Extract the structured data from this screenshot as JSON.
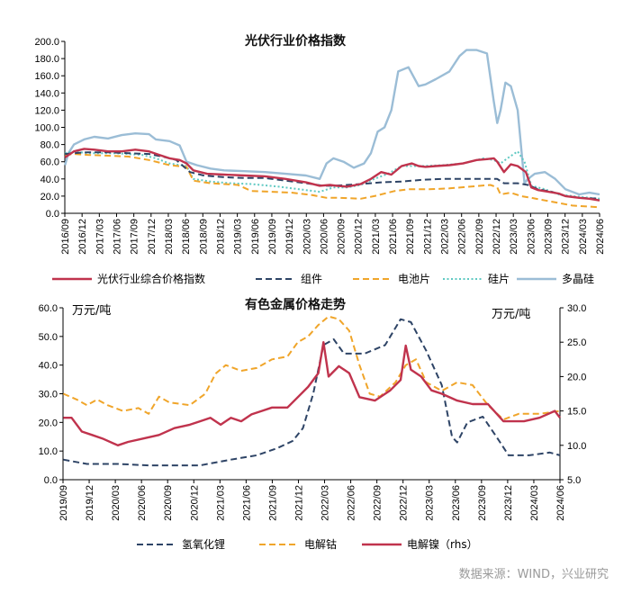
{
  "source": "数据来源：WIND，兴业研究",
  "colors": {
    "red": "#c0334d",
    "navy": "#2e4466",
    "orange": "#f0a52a",
    "teal": "#5fc9c2",
    "lightblue": "#9bbdd6"
  },
  "chart_data": [
    {
      "type": "line",
      "title": "光伏行业价格指数",
      "ylim": [
        0,
        200
      ],
      "yticks": [
        "0.0",
        "20.0",
        "40.0",
        "60.0",
        "80.0",
        "100.0",
        "120.0",
        "140.0",
        "160.0",
        "180.0",
        "200.0"
      ],
      "x_range": [
        2016.667,
        2024.5
      ],
      "xticks": [
        "2016/09",
        "2016/12",
        "2017/03",
        "2017/06",
        "2017/09",
        "2017/12",
        "2018/03",
        "2018/06",
        "2018/09",
        "2018/12",
        "2019/03",
        "2019/06",
        "2019/09",
        "2019/12",
        "2020/03",
        "2020/06",
        "2020/09",
        "2020/12",
        "2021/03",
        "2021/06",
        "2021/09",
        "2021/12",
        "2022/03",
        "2022/06",
        "2022/09",
        "2022/12",
        "2023/03",
        "2023/06",
        "2023/09",
        "2023/12",
        "2024/03",
        "2024/06"
      ],
      "series": [
        {
          "name": "光伏行业综合价格指数",
          "color": "red",
          "style": "solid",
          "width": 2.4,
          "x": [
            2016.67,
            2016.8,
            2016.95,
            2017.1,
            2017.3,
            2017.5,
            2017.7,
            2017.9,
            2018.05,
            2018.2,
            2018.35,
            2018.45,
            2018.55,
            2018.75,
            2019.0,
            2019.3,
            2019.6,
            2019.9,
            2020.2,
            2020.4,
            2020.55,
            2020.65,
            2020.8,
            2021.0,
            2021.15,
            2021.3,
            2021.45,
            2021.6,
            2021.75,
            2021.85,
            2021.95,
            2022.1,
            2022.3,
            2022.5,
            2022.7,
            2022.85,
            2022.95,
            2023.0,
            2023.1,
            2023.2,
            2023.3,
            2023.42,
            2023.5,
            2023.6,
            2023.75,
            2023.9,
            2024.0,
            2024.2,
            2024.35,
            2024.5
          ],
          "y": [
            65,
            72,
            75,
            74,
            72,
            72,
            74,
            72,
            68,
            64,
            62,
            58,
            50,
            46,
            45,
            44,
            43,
            40,
            36,
            32,
            33,
            32,
            31,
            34,
            40,
            48,
            45,
            55,
            58,
            55,
            54,
            55,
            56,
            58,
            62,
            63,
            64,
            60,
            48,
            57,
            55,
            48,
            30,
            27,
            25,
            23,
            20,
            18,
            17,
            15
          ]
        },
        {
          "name": "组件",
          "color": "navy",
          "style": "dash",
          "width": 2.0,
          "x": [
            2016.67,
            2016.8,
            2017.0,
            2017.3,
            2017.6,
            2017.9,
            2018.1,
            2018.3,
            2018.5,
            2018.7,
            2019.0,
            2019.3,
            2019.6,
            2019.9,
            2020.2,
            2020.45,
            2020.6,
            2020.8,
            2021.0,
            2021.3,
            2021.6,
            2021.9,
            2022.2,
            2022.5,
            2022.8,
            2023.0,
            2023.1,
            2023.3,
            2023.45,
            2023.6,
            2023.8,
            2024.0,
            2024.2,
            2024.5
          ],
          "y": [
            69,
            70,
            71,
            71,
            70,
            69,
            66,
            62,
            48,
            44,
            42,
            41,
            41,
            38,
            35,
            32,
            32,
            33,
            34,
            36,
            37,
            39,
            40,
            40,
            40,
            40,
            35,
            35,
            33,
            28,
            25,
            20,
            18,
            17
          ]
        },
        {
          "name": "电池片",
          "color": "orange",
          "style": "dash",
          "width": 2.0,
          "x": [
            2016.67,
            2016.8,
            2017.0,
            2017.3,
            2017.6,
            2017.9,
            2018.2,
            2018.45,
            2018.55,
            2018.8,
            2019.0,
            2019.2,
            2019.4,
            2019.7,
            2020.0,
            2020.3,
            2020.5,
            2020.7,
            2021.0,
            2021.2,
            2021.4,
            2021.5,
            2021.7,
            2022.0,
            2022.3,
            2022.6,
            2022.9,
            2023.0,
            2023.05,
            2023.2,
            2023.35,
            2023.5,
            2023.7,
            2023.9,
            2024.1,
            2024.5
          ],
          "y": [
            68,
            69,
            68,
            67,
            66,
            62,
            56,
            54,
            38,
            35,
            34,
            33,
            26,
            25,
            24,
            21,
            18,
            18,
            17,
            20,
            24,
            26,
            28,
            28,
            29,
            31,
            33,
            30,
            22,
            24,
            20,
            18,
            15,
            12,
            9,
            7
          ]
        },
        {
          "name": "硅片",
          "color": "teal",
          "style": "dot",
          "width": 2.0,
          "x": [
            2016.67,
            2016.8,
            2017.0,
            2017.4,
            2017.8,
            2018.0,
            2018.2,
            2018.45,
            2018.55,
            2018.8,
            2019.1,
            2019.4,
            2019.8,
            2020.1,
            2020.4,
            2020.6,
            2020.8,
            2021.0,
            2021.2,
            2021.4,
            2021.6,
            2021.9,
            2022.2,
            2022.5,
            2022.8,
            2022.95,
            2023.05,
            2023.15,
            2023.3,
            2023.4,
            2023.5,
            2023.7,
            2023.9,
            2024.1,
            2024.5
          ],
          "y": [
            70,
            72,
            70,
            70,
            68,
            64,
            58,
            55,
            40,
            37,
            35,
            34,
            31,
            28,
            25,
            30,
            30,
            33,
            40,
            46,
            55,
            55,
            56,
            58,
            64,
            62,
            58,
            64,
            72,
            60,
            32,
            28,
            22,
            20,
            17
          ]
        },
        {
          "name": "多晶硅",
          "color": "lightblue",
          "style": "solid",
          "width": 2.4,
          "x": [
            2016.67,
            2016.72,
            2016.8,
            2016.95,
            2017.1,
            2017.3,
            2017.5,
            2017.7,
            2017.9,
            2018.0,
            2018.2,
            2018.35,
            2018.45,
            2018.6,
            2018.8,
            2019.0,
            2019.3,
            2019.6,
            2019.9,
            2020.2,
            2020.4,
            2020.5,
            2020.6,
            2020.75,
            2020.9,
            2021.05,
            2021.15,
            2021.25,
            2021.35,
            2021.45,
            2021.55,
            2021.7,
            2021.85,
            2021.95,
            2022.1,
            2022.3,
            2022.45,
            2022.55,
            2022.7,
            2022.85,
            2022.95,
            2023.0,
            2023.05,
            2023.12,
            2023.2,
            2023.3,
            2023.4,
            2023.45,
            2023.55,
            2023.7,
            2023.85,
            2024.0,
            2024.2,
            2024.35,
            2024.5
          ],
          "y": [
            56,
            70,
            80,
            86,
            89,
            87,
            91,
            93,
            92,
            86,
            84,
            79,
            60,
            56,
            52,
            50,
            49,
            48,
            46,
            44,
            40,
            58,
            64,
            60,
            53,
            58,
            70,
            95,
            100,
            120,
            165,
            170,
            148,
            150,
            156,
            165,
            183,
            190,
            190,
            186,
            130,
            105,
            120,
            152,
            148,
            120,
            35,
            40,
            46,
            48,
            40,
            28,
            22,
            24,
            22
          ]
        }
      ],
      "legend": [
        "光伏行业综合价格指数",
        "组件",
        "电池片",
        "硅片",
        "多晶硅"
      ]
    },
    {
      "type": "line",
      "title": "有色金属价格走势",
      "ylabel_left": "万元/吨",
      "ylabel_right": "万元/吨",
      "ylim_left": [
        0,
        60
      ],
      "ylim_right": [
        5,
        30
      ],
      "yticks_left": [
        "0.0",
        "10.0",
        "20.0",
        "30.0",
        "40.0",
        "50.0",
        "60.0"
      ],
      "yticks_right": [
        "5.0",
        "10.0",
        "15.0",
        "20.0",
        "25.0",
        "30.0"
      ],
      "x_range": [
        2019.667,
        2024.5
      ],
      "xticks": [
        "2019/09",
        "2019/12",
        "2020/03",
        "2020/06",
        "2020/09",
        "2020/12",
        "2021/03",
        "2021/06",
        "2021/09",
        "2021/12",
        "2022/03",
        "2022/06",
        "2022/09",
        "2022/12",
        "2023/03",
        "2023/06",
        "2023/09",
        "2023/12",
        "2024/03",
        "2024/06"
      ],
      "series": [
        {
          "name": "氢氧化锂",
          "axis": "left",
          "color": "navy",
          "style": "dash",
          "width": 2.0,
          "x": [
            2019.67,
            2019.9,
            2020.2,
            2020.5,
            2020.8,
            2021.0,
            2021.3,
            2021.55,
            2021.75,
            2021.9,
            2022.0,
            2022.1,
            2022.2,
            2022.3,
            2022.4,
            2022.6,
            2022.8,
            2022.95,
            2023.05,
            2023.2,
            2023.35,
            2023.45,
            2023.5,
            2023.6,
            2023.75,
            2023.9,
            2024.0,
            2024.2,
            2024.4,
            2024.5
          ],
          "y": [
            7,
            5.5,
            5.5,
            5,
            5,
            5,
            7,
            8.5,
            11,
            13.5,
            18,
            30,
            47,
            49,
            44,
            44,
            47,
            56,
            55,
            45,
            33,
            15,
            13,
            20,
            22,
            14,
            8.5,
            8.5,
            9.5,
            8.5
          ]
        },
        {
          "name": "电解钴",
          "axis": "left",
          "color": "orange",
          "style": "dash",
          "width": 2.0,
          "x": [
            2019.67,
            2019.8,
            2019.9,
            2020.0,
            2020.1,
            2020.25,
            2020.4,
            2020.5,
            2020.6,
            2020.7,
            2020.9,
            2021.05,
            2021.15,
            2021.25,
            2021.4,
            2021.55,
            2021.7,
            2021.85,
            2021.95,
            2022.05,
            2022.15,
            2022.25,
            2022.35,
            2022.45,
            2022.55,
            2022.65,
            2022.75,
            2022.9,
            2023.0,
            2023.1,
            2023.2,
            2023.35,
            2023.5,
            2023.65,
            2023.8,
            2023.95,
            2024.1,
            2024.3,
            2024.5
          ],
          "y": [
            30,
            28,
            26,
            28,
            26,
            24,
            25,
            23,
            29,
            27,
            26,
            30,
            37,
            40,
            38,
            39,
            42,
            43,
            48,
            50,
            54,
            57,
            56,
            52,
            40,
            30,
            29,
            34,
            40,
            42,
            34,
            31,
            34,
            33,
            26,
            21,
            23,
            23,
            24
          ]
        },
        {
          "name": "电解镍（rhs）",
          "axis": "right",
          "color": "red",
          "style": "solid",
          "width": 2.4,
          "x": [
            2019.67,
            2019.75,
            2019.85,
            2019.95,
            2020.05,
            2020.2,
            2020.3,
            2020.45,
            2020.6,
            2020.75,
            2020.9,
            2021.0,
            2021.1,
            2021.2,
            2021.3,
            2021.4,
            2021.5,
            2021.6,
            2021.7,
            2021.85,
            2021.95,
            2022.05,
            2022.15,
            2022.2,
            2022.25,
            2022.35,
            2022.45,
            2022.55,
            2022.7,
            2022.85,
            2022.95,
            2023.0,
            2023.05,
            2023.15,
            2023.25,
            2023.35,
            2023.5,
            2023.65,
            2023.8,
            2023.95,
            2024.05,
            2024.15,
            2024.3,
            2024.45,
            2024.5
          ],
          "y": [
            14,
            14,
            12,
            11.5,
            11,
            10,
            10.5,
            11,
            11.5,
            12.5,
            13,
            13.5,
            14,
            13,
            14,
            13.5,
            14.5,
            15,
            15.5,
            15.5,
            17,
            18.5,
            20.5,
            25,
            20,
            21.5,
            20.5,
            17,
            16.5,
            18,
            19.5,
            24.5,
            21,
            20,
            18,
            17.5,
            16.5,
            16,
            16,
            13.5,
            13.5,
            13.5,
            14,
            15,
            14
          ]
        }
      ],
      "legend": [
        "氢氧化锂",
        "电解钴",
        "电解镍（rhs）"
      ]
    }
  ]
}
